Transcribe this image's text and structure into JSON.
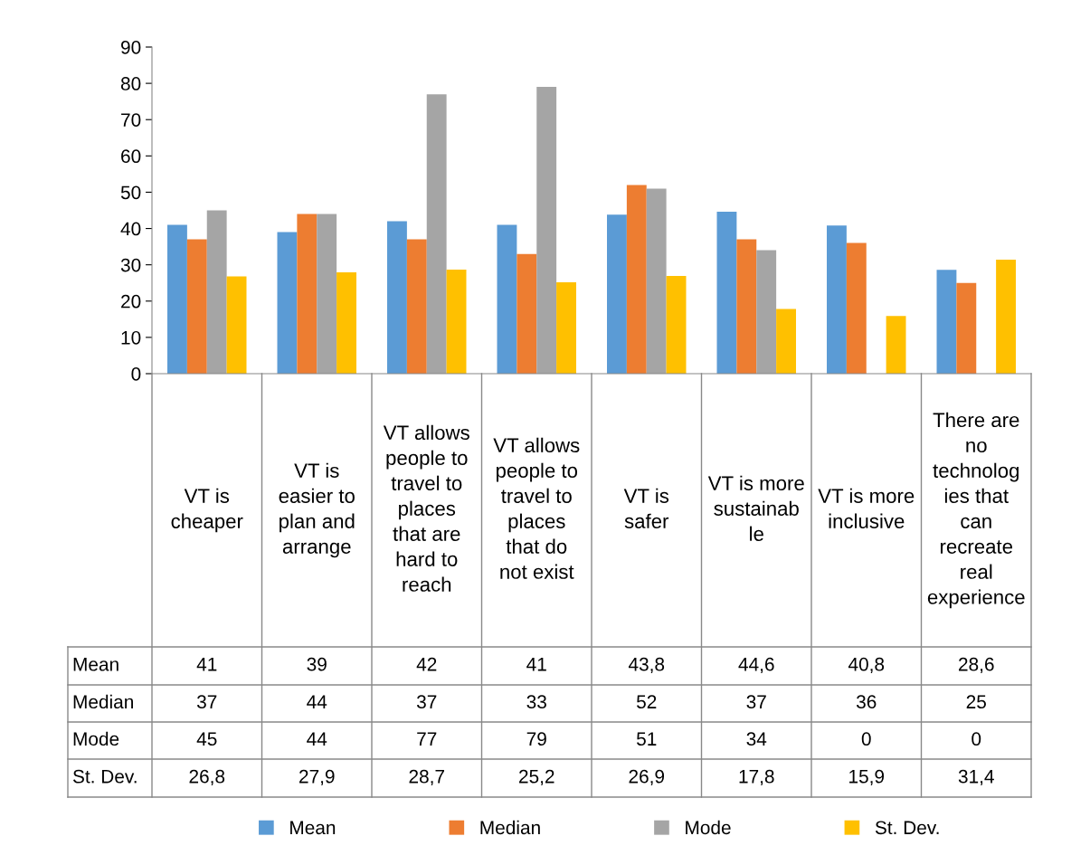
{
  "chart_data": {
    "type": "bar",
    "categories": [
      "VT is cheaper",
      "VT is easier to plan and arrange",
      "VT allows people to travel to places that are hard to reach",
      "VT allows people to travel to places that do not exist",
      "VT is safer",
      "VT is more sustainable",
      "VT is more inclusive",
      "There are no technologies that can recreate real experience"
    ],
    "series": [
      {
        "name": "Mean",
        "color": "#5b9bd5",
        "values": [
          41,
          39,
          42,
          41,
          43.8,
          44.6,
          40.8,
          28.6
        ],
        "value_labels": [
          "41",
          "39",
          "42",
          "41",
          "43,8",
          "44,6",
          "40,8",
          "28,6"
        ]
      },
      {
        "name": "Median",
        "color": "#ed7d31",
        "values": [
          37,
          44,
          37,
          33,
          52,
          37,
          36,
          25
        ],
        "value_labels": [
          "37",
          "44",
          "37",
          "33",
          "52",
          "37",
          "36",
          "25"
        ]
      },
      {
        "name": "Mode",
        "color": "#a5a5a5",
        "values": [
          45,
          44,
          77,
          79,
          51,
          34,
          0,
          0
        ],
        "value_labels": [
          "45",
          "44",
          "77",
          "79",
          "51",
          "34",
          "0",
          "0"
        ]
      },
      {
        "name": "St. Dev.",
        "color": "#ffc000",
        "values": [
          26.8,
          27.9,
          28.7,
          25.2,
          26.9,
          17.8,
          15.9,
          31.4
        ],
        "value_labels": [
          "26,8",
          "27,9",
          "28,7",
          "25,2",
          "26,9",
          "17,8",
          "15,9",
          "31,4"
        ]
      }
    ],
    "ylim": [
      0,
      90
    ],
    "yticks": [
      0,
      10,
      20,
      30,
      40,
      50,
      60,
      70,
      80,
      90
    ],
    "grid": false,
    "legend": "bottom",
    "tick_labels": "y"
  }
}
